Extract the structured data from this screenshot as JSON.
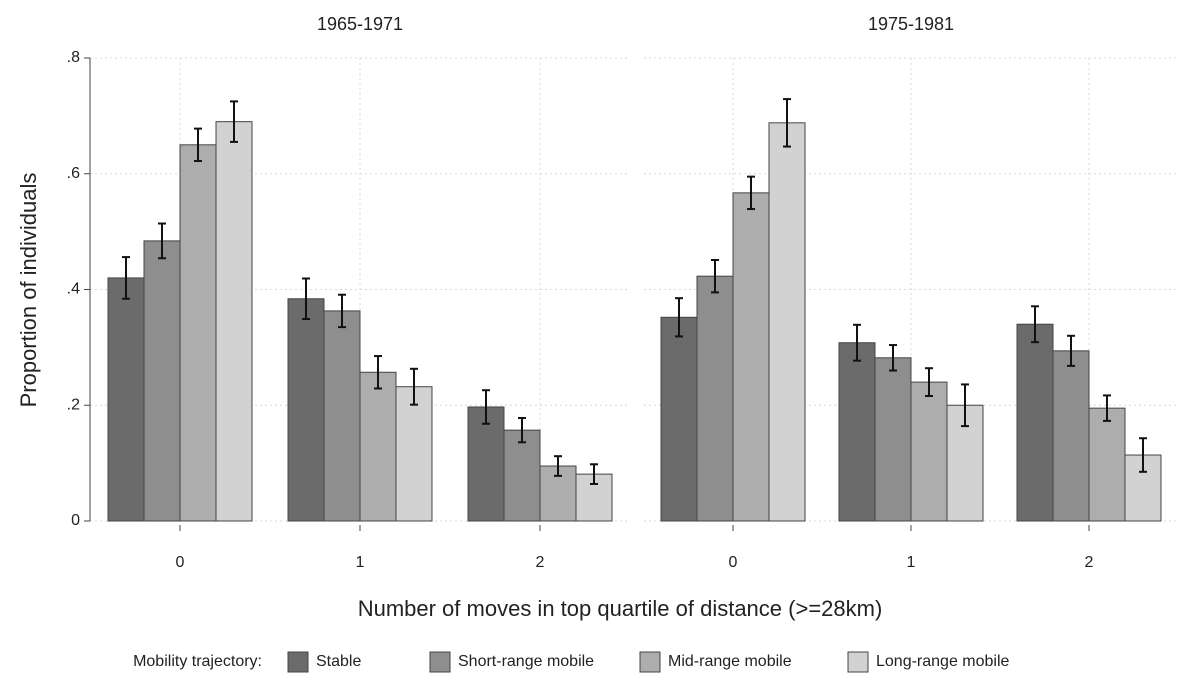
{
  "chart_data": {
    "type": "bar",
    "xlabel": "Number of moves in top quartile of distance (>=28km)",
    "ylabel": "Proportion of individuals",
    "legend_title": "Mobility trajectory:",
    "categories": [
      "0",
      "1",
      "2"
    ],
    "ylim": [
      0,
      0.8
    ],
    "yticks": [
      0,
      {
        "value": 0.2,
        "label": ".2"
      },
      {
        "value": 0.4,
        "label": ".4"
      },
      {
        "value": 0.6,
        "label": ".6"
      },
      {
        "value": 0.8,
        "label": ".8"
      }
    ],
    "grid": true,
    "series": [
      {
        "name": "Stable",
        "color": "#6b6b6b"
      },
      {
        "name": "Short-range mobile",
        "color": "#8e8e8e"
      },
      {
        "name": "Mid-range mobile",
        "color": "#adadad"
      },
      {
        "name": "Long-range mobile",
        "color": "#d2d2d2"
      }
    ],
    "panels": [
      {
        "title": "1965-1971",
        "series": [
          {
            "values": [
              0.42,
              0.384,
              0.197
            ],
            "errors": [
              0.036,
              0.035,
              0.029
            ]
          },
          {
            "values": [
              0.484,
              0.363,
              0.157
            ],
            "errors": [
              0.03,
              0.028,
              0.021
            ]
          },
          {
            "values": [
              0.65,
              0.257,
              0.095
            ],
            "errors": [
              0.028,
              0.028,
              0.017
            ]
          },
          {
            "values": [
              0.69,
              0.232,
              0.081
            ],
            "errors": [
              0.035,
              0.031,
              0.017
            ]
          }
        ]
      },
      {
        "title": "1975-1981",
        "series": [
          {
            "values": [
              0.352,
              0.308,
              0.34
            ],
            "errors": [
              0.033,
              0.031,
              0.031
            ]
          },
          {
            "values": [
              0.423,
              0.282,
              0.294
            ],
            "errors": [
              0.028,
              0.022,
              0.026
            ]
          },
          {
            "values": [
              0.567,
              0.24,
              0.195
            ],
            "errors": [
              0.028,
              0.024,
              0.022
            ]
          },
          {
            "values": [
              0.688,
              0.2,
              0.114
            ],
            "errors": [
              0.041,
              0.036,
              0.029
            ]
          }
        ]
      }
    ]
  }
}
